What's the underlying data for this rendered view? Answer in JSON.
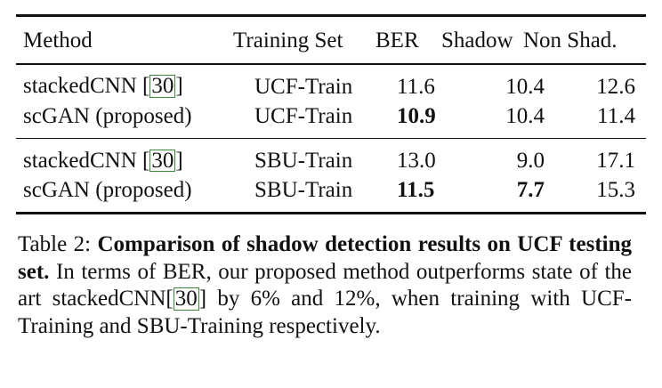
{
  "table": {
    "headers": {
      "method": "Method",
      "training_set": "Training Set",
      "ber": "BER",
      "shadow": "Shadow",
      "non_shadow": "Non Shad."
    },
    "rows": [
      {
        "method": "stackedCNN ",
        "cite": "30",
        "cite_close": "]",
        "cite_open": "[",
        "training_set": "UCF-Train",
        "ber": "11.6",
        "shadow": "10.4",
        "non_shadow": "12.6"
      },
      {
        "method": "scGAN (proposed)",
        "training_set": "UCF-Train",
        "ber": "10.9",
        "shadow": "10.4",
        "non_shadow": "11.4"
      },
      {
        "method": "stackedCNN ",
        "cite": "30",
        "cite_close": "]",
        "cite_open": "[",
        "training_set": "SBU-Train",
        "ber": "13.0",
        "shadow": "9.0",
        "non_shadow": "17.1"
      },
      {
        "method": "scGAN (proposed)",
        "training_set": "SBU-Train",
        "ber": "11.5",
        "shadow": "7.7",
        "non_shadow": "15.3"
      }
    ]
  },
  "caption": {
    "label": "Table 2: ",
    "bold_title": "Comparison of shadow detection results on UCF testing set.",
    "text_before_cite": " In terms of BER, our proposed method outperforms state of the art stackedCNN",
    "cite_open": "[",
    "cite": "30",
    "cite_close": "]",
    "text_after_cite": " by 6% and 12%, when training with UCF-Training and SBU-Training respectively."
  }
}
